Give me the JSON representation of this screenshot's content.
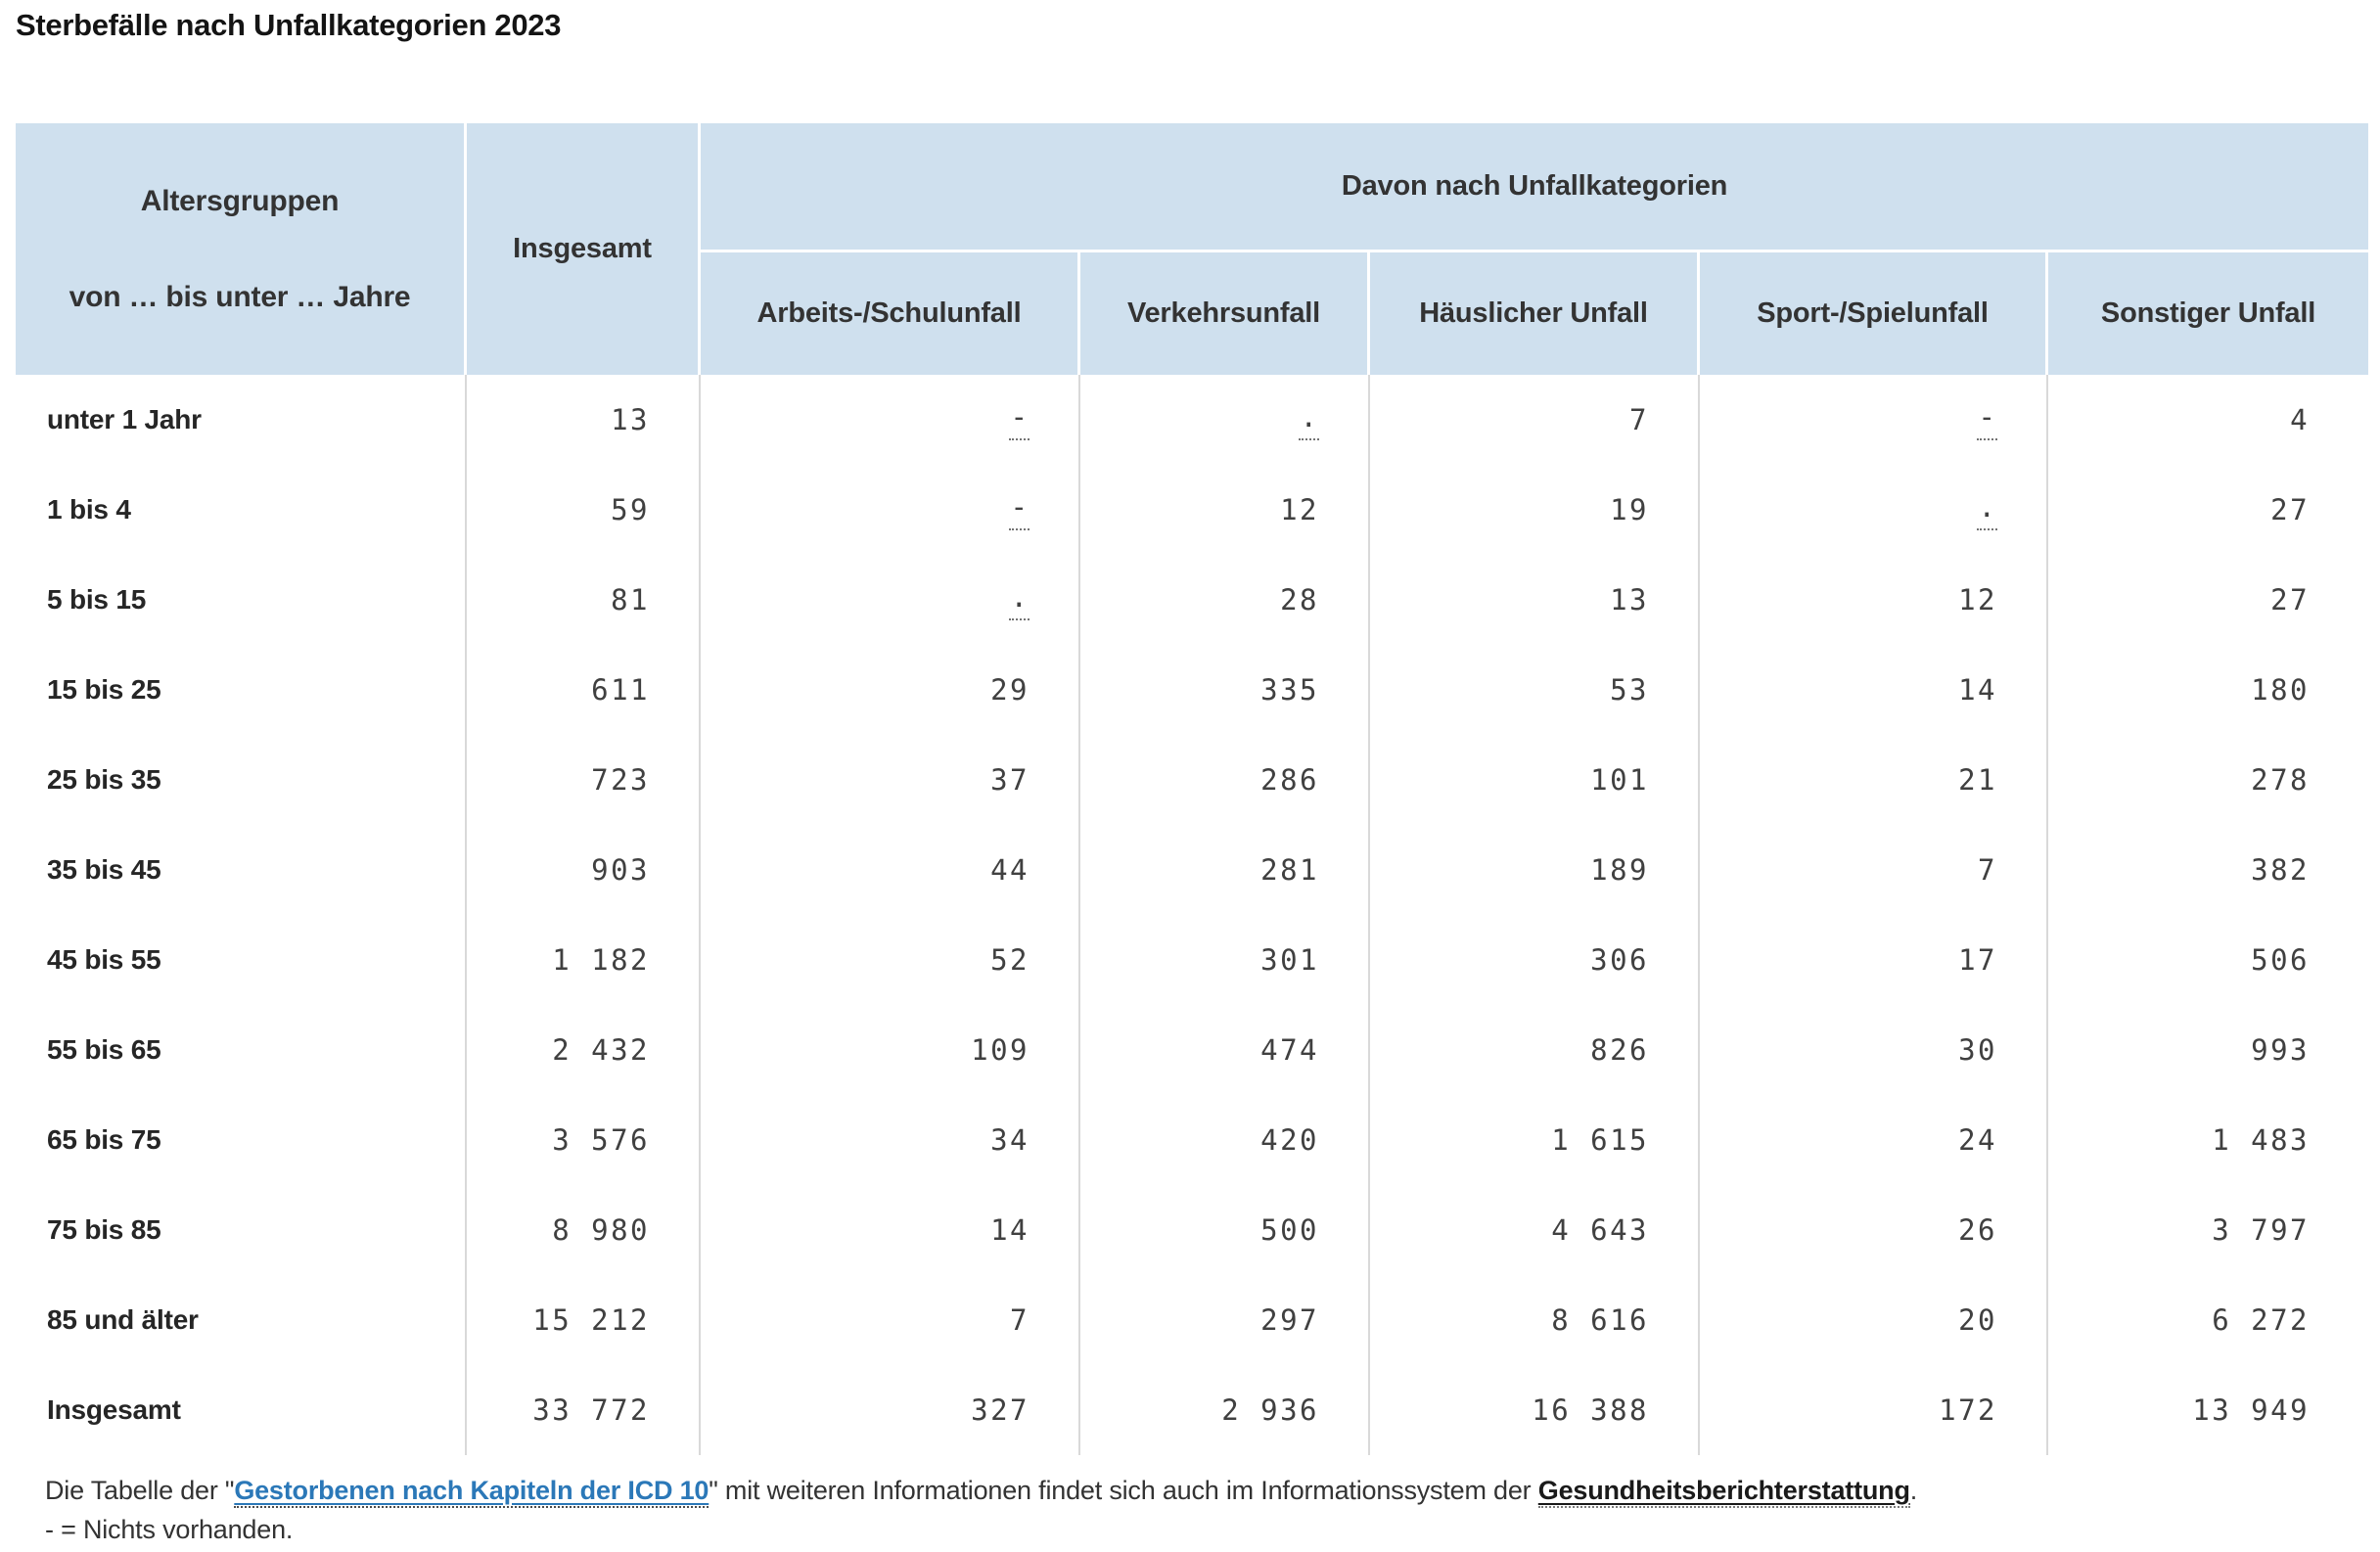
{
  "page": {
    "title": "Sterbefälle nach Unfallkategorien 2023"
  },
  "table": {
    "header": {
      "agegroups_line1": "Altersgruppen",
      "agegroups_line2": "von … bis unter … Jahre",
      "total": "Insgesamt",
      "group_label": "Davon nach Unfallkategorien",
      "categories": [
        "Arbeits-/Schulunfall",
        "Verkehrsunfall",
        "Häuslicher Unfall",
        "Sport-/Spielunfall",
        "Sonstiger Unfall"
      ]
    },
    "rows": [
      {
        "label": "unter 1 Jahr",
        "values": [
          "13",
          "-",
          ".",
          "7",
          "-",
          "4"
        ]
      },
      {
        "label": "1 bis 4",
        "values": [
          "59",
          "-",
          "12",
          "19",
          ".",
          "27"
        ]
      },
      {
        "label": "5 bis 15",
        "values": [
          "81",
          ".",
          "28",
          "13",
          "12",
          "27"
        ]
      },
      {
        "label": "15 bis 25",
        "values": [
          "611",
          "29",
          "335",
          "53",
          "14",
          "180"
        ]
      },
      {
        "label": "25 bis 35",
        "values": [
          "723",
          "37",
          "286",
          "101",
          "21",
          "278"
        ]
      },
      {
        "label": "35 bis 45",
        "values": [
          "903",
          "44",
          "281",
          "189",
          "7",
          "382"
        ]
      },
      {
        "label": "45 bis 55",
        "values": [
          "1 182",
          "52",
          "301",
          "306",
          "17",
          "506"
        ]
      },
      {
        "label": "55 bis 65",
        "values": [
          "2 432",
          "109",
          "474",
          "826",
          "30",
          "993"
        ]
      },
      {
        "label": "65 bis 75",
        "values": [
          "3 576",
          "34",
          "420",
          "1 615",
          "24",
          "1 483"
        ]
      },
      {
        "label": "75 bis 85",
        "values": [
          "8 980",
          "14",
          "500",
          "4 643",
          "26",
          "3 797"
        ]
      },
      {
        "label": "85 und älter",
        "values": [
          "15 212",
          "7",
          "297",
          "8 616",
          "20",
          "6 272"
        ]
      },
      {
        "label": "Insgesamt",
        "values": [
          "33 772",
          "327",
          "2 936",
          "16 388",
          "172",
          "13 949"
        ]
      }
    ],
    "special_symbols": {
      "dash": "-",
      "dot": "."
    }
  },
  "footer": {
    "line1_prefix": "Die Tabelle der \"",
    "link_icd": "Gestorbenen nach Kapiteln der ICD 10",
    "line1_middle": "\" mit weiteren Informationen findet sich auch im Informationssystem der ",
    "link_gbe": "Gesundheitsberichterstattung",
    "line1_suffix": ".",
    "line2": "- = Nichts vorhanden."
  },
  "colors": {
    "header_background": "#cfe0ee",
    "link_blue": "#2b78b8",
    "separator_gray": "#d9d9d9",
    "text_dark": "#262626"
  }
}
